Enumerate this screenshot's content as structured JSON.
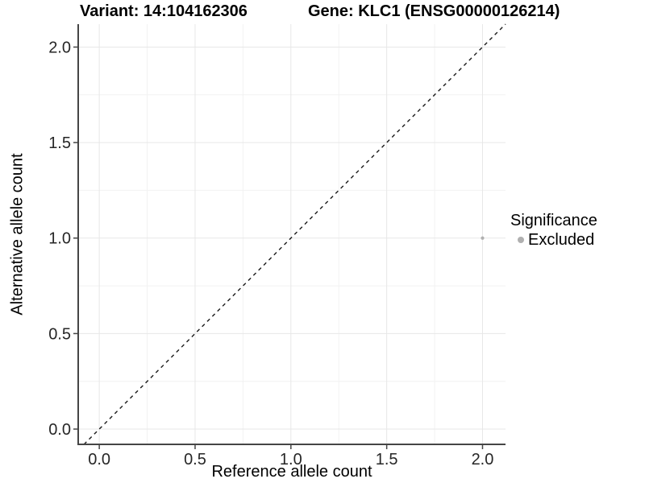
{
  "figure": {
    "title_left": "Variant: 14:104162306",
    "title_right": "Gene: KLC1 (ENSG00000126214)"
  },
  "chart_data": {
    "type": "scatter",
    "title": "Variant: 14:104162306   Gene: KLC1 (ENSG00000126214)",
    "xlabel": "Reference allele count",
    "ylabel": "Alternative allele count",
    "xlim": [
      -0.11,
      2.12
    ],
    "ylim": [
      -0.08,
      2.12
    ],
    "x_ticks": [
      0,
      0.5,
      1,
      1.5,
      2
    ],
    "x_tick_labels": [
      "0.0",
      "0.5",
      "1.0",
      "1.5",
      "2.0"
    ],
    "y_ticks": [
      0,
      0.5,
      1,
      1.5,
      2
    ],
    "y_tick_labels": [
      "0.0",
      "0.5",
      "1.0",
      "1.5",
      "2.0"
    ],
    "minor_ticks": [
      0.25,
      0.75,
      1.25,
      1.75
    ],
    "grid": "major+minor",
    "identity_line": {
      "slope": 1,
      "intercept": 0,
      "style": "dashed",
      "color": "#1a1a1a"
    },
    "series": [
      {
        "name": "Excluded",
        "color": "#b0b0b0",
        "points": [
          {
            "x": 2.0,
            "y": 1.0
          }
        ]
      }
    ],
    "legend": {
      "title": "Significance",
      "position": "right",
      "entries": [
        {
          "label": "Excluded",
          "color": "#b0b0b0"
        }
      ]
    },
    "colors": {
      "background": "#ffffff",
      "grid_major": "#e7e7e7",
      "grid_minor": "#f2f2f2",
      "axis": "#454545",
      "tick_text": "#262626",
      "point": "#b0b0b0"
    }
  }
}
